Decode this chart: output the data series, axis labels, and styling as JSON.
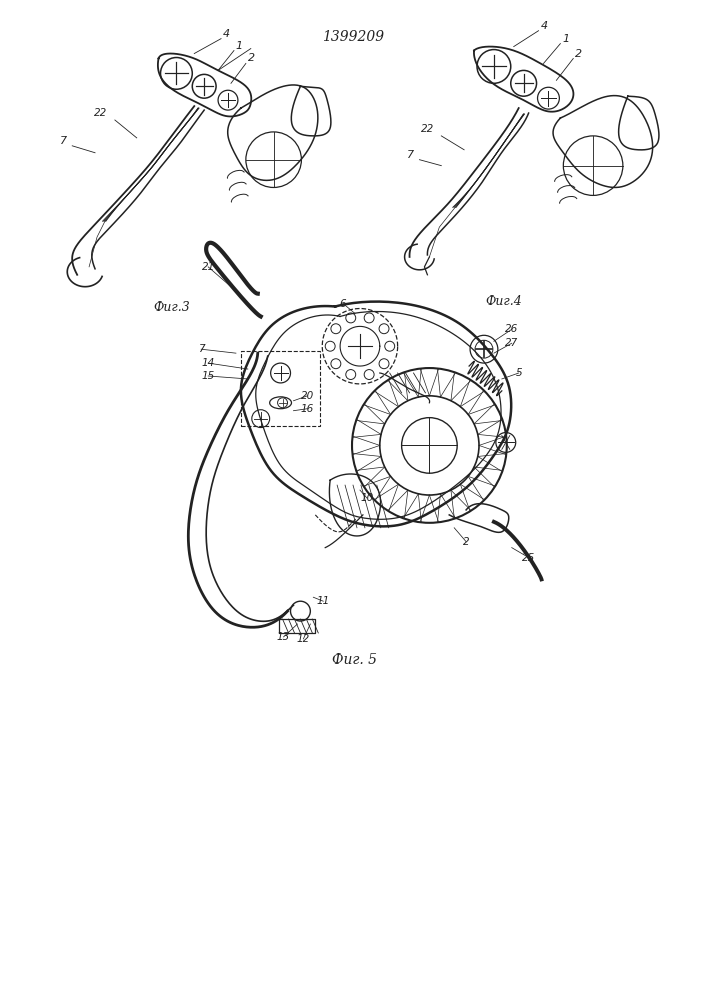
{
  "title": "1399209",
  "fig3_label": "Фиг.3",
  "fig4_label": "Фиг.4",
  "fig5_label": "Фиг. 5",
  "bg_color": "#ffffff",
  "line_color": "#222222",
  "line_width": 1.0
}
